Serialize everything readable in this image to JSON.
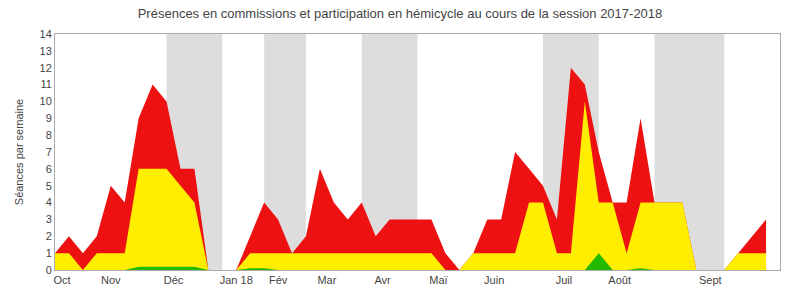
{
  "chart_data": {
    "type": "area",
    "title": "Présences en commissions et participation en hémicycle au cours de la session 2017-2018",
    "y_label": "Séances par semaine",
    "x": [
      0,
      1,
      2,
      3,
      4,
      5,
      6,
      7,
      8,
      9,
      10,
      11,
      12,
      13,
      14,
      15,
      16,
      17,
      18,
      19,
      20,
      21,
      22,
      23,
      24,
      25,
      26,
      27,
      28,
      29,
      30,
      31,
      32,
      33,
      34,
      35,
      36,
      37,
      38,
      39,
      40,
      41,
      42,
      43,
      44,
      45,
      46,
      47,
      48,
      49,
      50,
      51
    ],
    "series": [
      {
        "color": "#ee1111",
        "values": [
          1,
          2,
          1,
          2,
          5,
          4,
          9,
          11,
          10,
          6,
          6,
          0,
          0,
          0,
          2,
          4,
          3,
          1,
          2,
          6,
          4,
          3,
          4,
          2,
          3,
          3,
          3,
          3,
          1,
          0,
          1,
          3,
          3,
          7,
          6,
          5,
          3,
          12,
          11,
          7,
          4,
          4,
          9,
          4,
          4,
          4,
          0,
          0,
          0,
          1,
          2,
          3
        ]
      },
      {
        "color": "#ffee00",
        "values": [
          1,
          1,
          0,
          1,
          1,
          1,
          6,
          6,
          6,
          5,
          4,
          0,
          0,
          0,
          1,
          1,
          1,
          1,
          1,
          1,
          1,
          1,
          1,
          1,
          1,
          1,
          1,
          1,
          0,
          0,
          1,
          1,
          1,
          1,
          4,
          4,
          1,
          1,
          10,
          4,
          4,
          1,
          4,
          4,
          4,
          4,
          0,
          0,
          0,
          1,
          1,
          1
        ]
      },
      {
        "color": "#22bb00",
        "values": [
          0,
          0,
          0,
          0,
          0,
          0,
          0.2,
          0.2,
          0.2,
          0.2,
          0.2,
          0,
          0,
          0,
          0.1,
          0.1,
          0,
          0,
          0,
          0,
          0,
          0,
          0,
          0,
          0,
          0,
          0,
          0,
          0,
          0,
          0,
          0,
          0,
          0,
          0,
          0,
          0,
          0,
          0,
          1,
          0,
          0,
          0.1,
          0,
          0,
          0,
          0,
          0,
          0,
          0,
          0,
          0
        ]
      }
    ],
    "shaded_x_ranges": [
      [
        8,
        12
      ],
      [
        15,
        18
      ],
      [
        22,
        26
      ],
      [
        35,
        39
      ],
      [
        43,
        48
      ]
    ],
    "xlim": [
      0,
      52
    ],
    "xticks": [
      {
        "value": 0.5,
        "label": "Oct"
      },
      {
        "value": 4,
        "label": "Nov"
      },
      {
        "value": 8.5,
        "label": "Déc"
      },
      {
        "value": 13,
        "label": "Jan 18"
      },
      {
        "value": 16,
        "label": "Fév"
      },
      {
        "value": 19.5,
        "label": "Mar"
      },
      {
        "value": 23.5,
        "label": "Avr"
      },
      {
        "value": 27.5,
        "label": "Maï"
      },
      {
        "value": 31.5,
        "label": "Juin"
      },
      {
        "value": 36.5,
        "label": "Juil"
      },
      {
        "value": 40.5,
        "label": "Août"
      },
      {
        "value": 47,
        "label": "Sept"
      }
    ],
    "ylim": [
      0,
      14
    ],
    "yticks": [
      0,
      1,
      2,
      3,
      4,
      5,
      6,
      7,
      8,
      9,
      10,
      11,
      12,
      13,
      14
    ],
    "grid": false
  }
}
